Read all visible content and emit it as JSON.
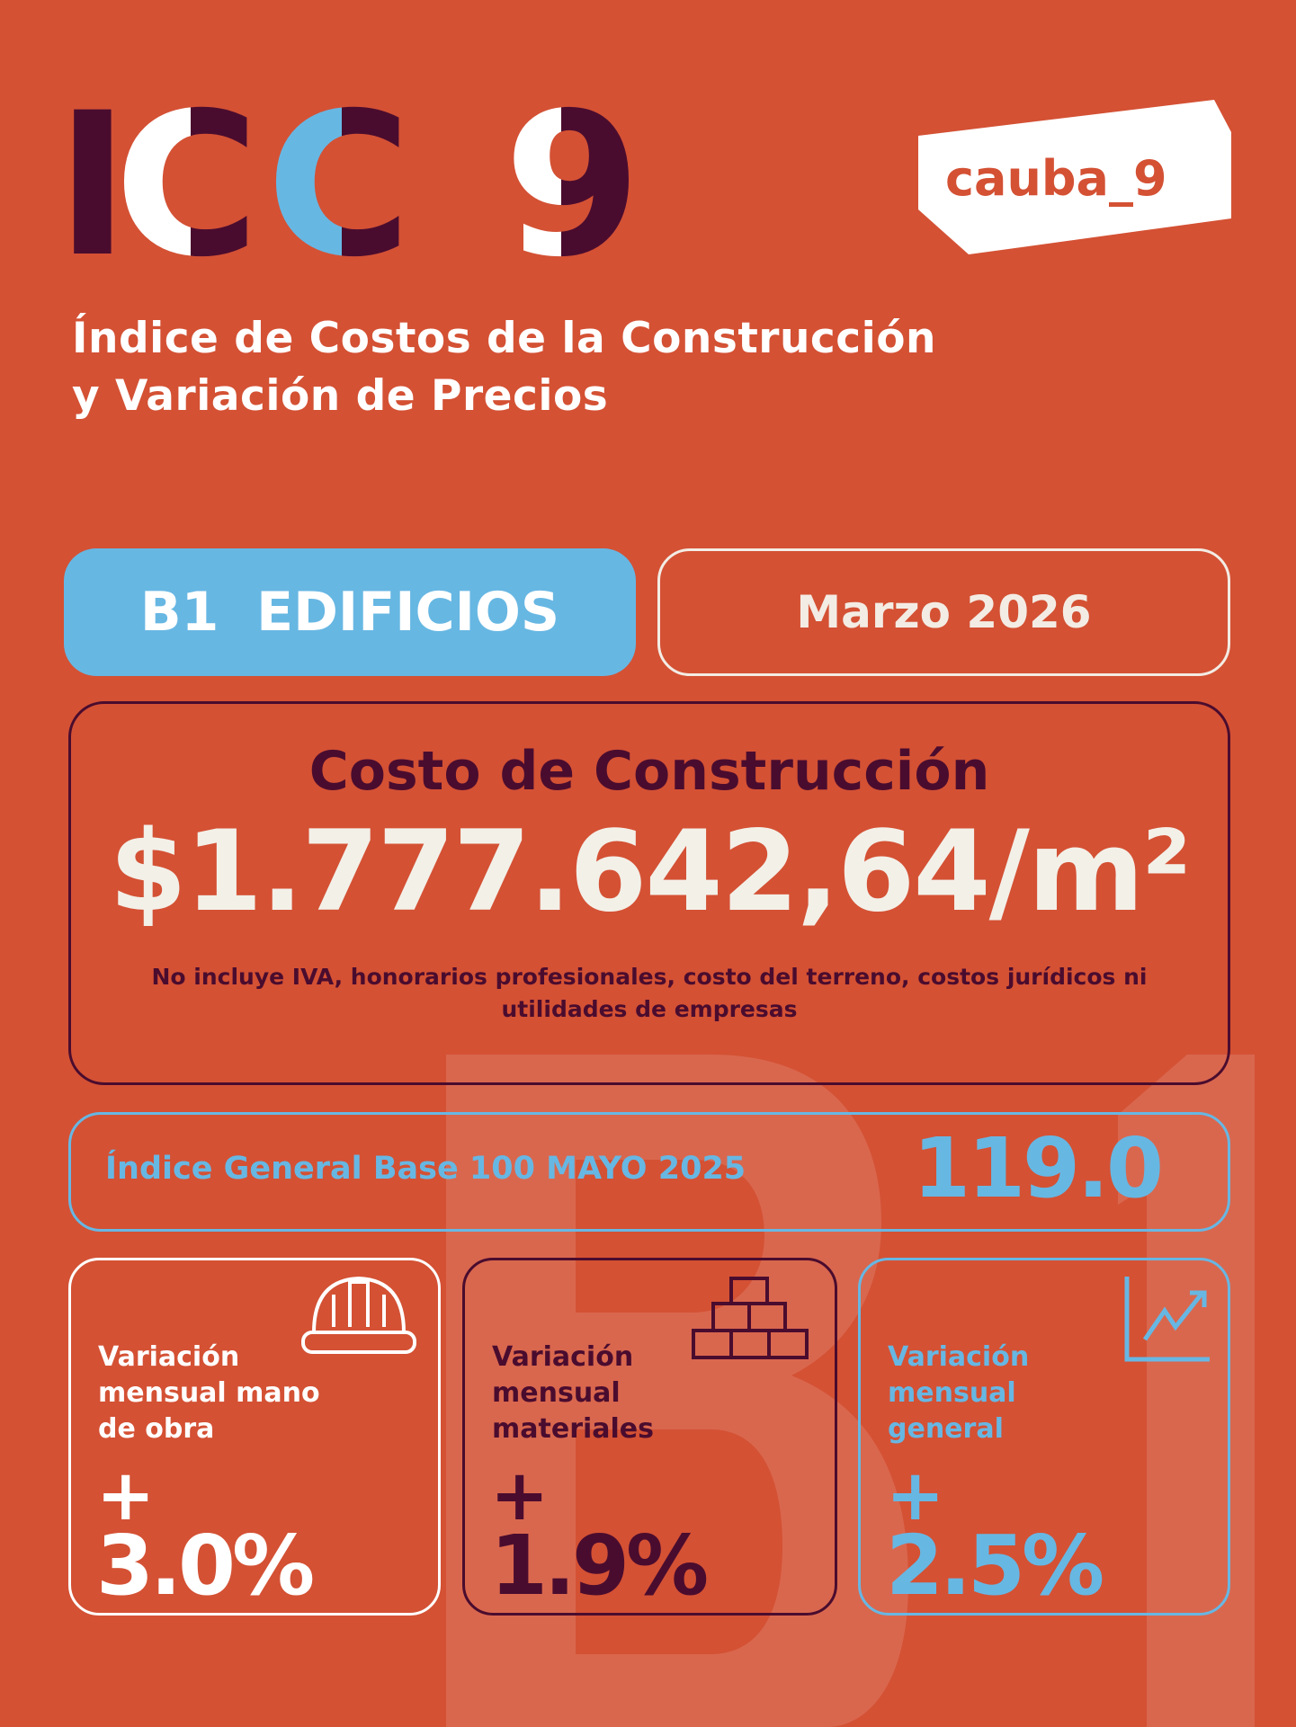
{
  "header": {
    "logo_text": "ICC_9",
    "brand_logo_text": "cauba_9",
    "subtitle_line1": "Índice de Costos de la Construcción",
    "subtitle_line2": "y Variación de Precios"
  },
  "watermark_text": "B1",
  "category": "B1  EDIFICIOS",
  "period": "Marzo 2026",
  "cost": {
    "title": "Costo de Construcción",
    "value": "$1.777.642,64/m²",
    "note": "No incluye IVA, honorarios profesionales, costo del terreno, costos jurídicos ni utilidades de empresas"
  },
  "index": {
    "label": "Índice General Base 100 MAYO 2025",
    "value": "119.0"
  },
  "cards": [
    {
      "label": "Variación mensual mano de obra",
      "sign": "+",
      "value": "3.0%",
      "icon": "hard-hat-icon",
      "color": "#ffffff"
    },
    {
      "label": "Variación mensual materiales",
      "sign": "+",
      "value": "1.9%",
      "icon": "bricks-icon",
      "color": "#4a0c2e"
    },
    {
      "label": "Variación mensual general",
      "sign": "+",
      "value": "2.5%",
      "icon": "trend-chart-icon",
      "color": "#67b7e3"
    }
  ],
  "colors": {
    "background": "#d45134",
    "dark": "#4a0c2e",
    "blue": "#67b7e3",
    "cream": "#f3f0e8"
  }
}
